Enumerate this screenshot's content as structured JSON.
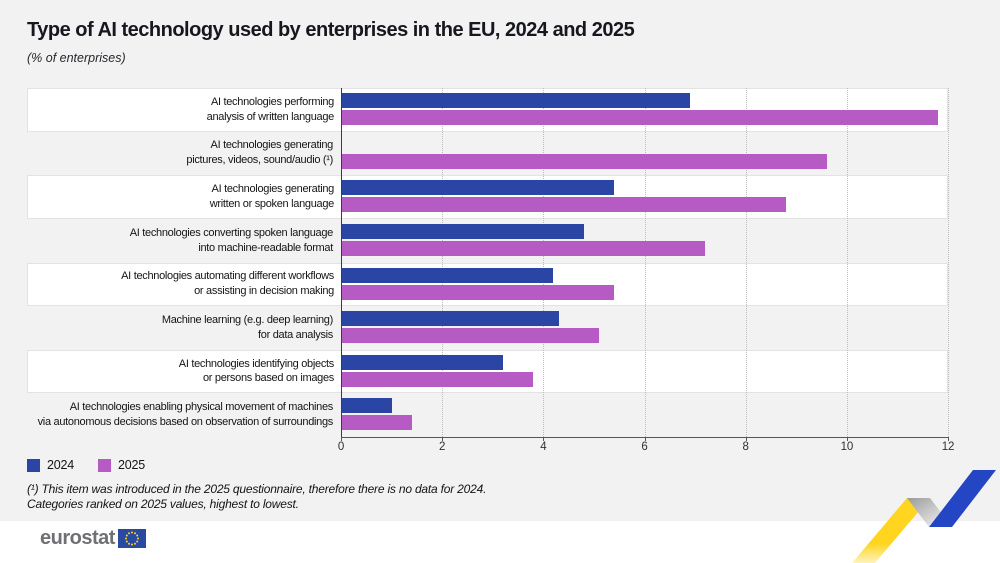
{
  "page": {
    "title": "Type of AI technology used by enterprises in the EU, 2024 and 2025",
    "subtitle": "(% of enterprises)"
  },
  "chart_data": {
    "type": "bar",
    "orientation": "horizontal",
    "title": "Type of AI technology used by enterprises in the EU, 2024 and 2025",
    "xlabel": "(% of enterprises)",
    "xlim": [
      0,
      12
    ],
    "x_ticks": [
      0,
      2,
      4,
      6,
      8,
      10,
      12
    ],
    "grid": "vertical dotted gridlines at even values",
    "legend_position": "bottom-left",
    "row_stripes": "alternating white / background, starting white",
    "categories": [
      {
        "lines": [
          "AI technologies performing",
          "analysis of written language"
        ]
      },
      {
        "lines": [
          "AI technologies generating",
          "pictures, videos, sound/audio (¹)"
        ]
      },
      {
        "lines": [
          "AI technologies generating",
          "written or spoken language"
        ]
      },
      {
        "lines": [
          "AI technologies converting spoken language",
          "into machine-readable format"
        ]
      },
      {
        "lines": [
          "AI technologies automating different workflows",
          "or assisting in decision making"
        ]
      },
      {
        "lines": [
          "Machine learning (e.g. deep learning)",
          "for data analysis"
        ]
      },
      {
        "lines": [
          "AI technologies identifying objects",
          "or persons based on images"
        ]
      },
      {
        "lines": [
          "AI technologies enabling physical movement of machines",
          "via autonomous decisions based on observation of surroundings"
        ]
      }
    ],
    "series": [
      {
        "name": "2024",
        "color": "#2b45a5",
        "values": [
          6.9,
          null,
          5.4,
          4.8,
          4.2,
          4.3,
          3.2,
          1.0
        ]
      },
      {
        "name": "2025",
        "color": "#b55bc3",
        "values": [
          11.8,
          9.6,
          8.8,
          7.2,
          5.4,
          5.1,
          3.8,
          1.4
        ]
      }
    ]
  },
  "legend": {
    "items": [
      {
        "label": "2024",
        "color": "#2b45a5"
      },
      {
        "label": "2025",
        "color": "#b55bc3"
      }
    ]
  },
  "footnotes": [
    "(¹) This item was introduced in the 2025 questionnaire, therefore there is no data for 2024.",
    "Categories ranked on 2025 values, highest to lowest."
  ],
  "footer": {
    "brand": "eurostat"
  },
  "colors": {
    "background": "#f2f2f2",
    "stripe": "#ffffff",
    "bar_2024": "#2b45a5",
    "bar_2025": "#b55bc3",
    "axis": "#55565a",
    "grid": "#bdbdbd",
    "title_text": "#16181d",
    "eu_flag_blue": "#2a4a9f",
    "eu_flag_stars": "#ffd617",
    "ribbon_yellow": "#ffd51f",
    "ribbon_blue": "#2446c5"
  }
}
